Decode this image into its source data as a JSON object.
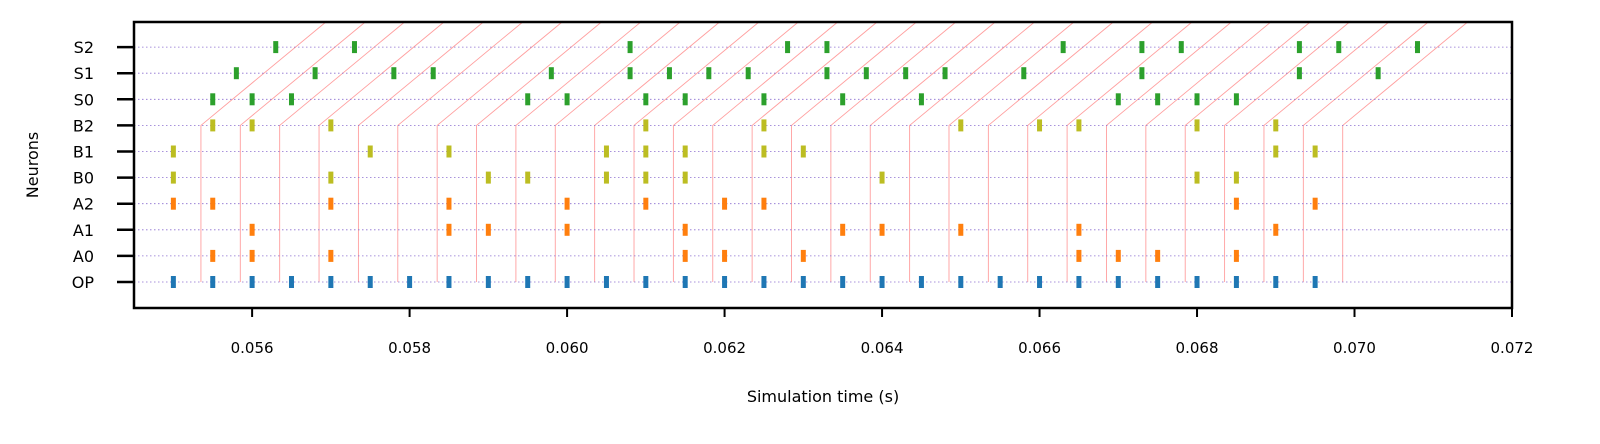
{
  "chart_data": {
    "type": "scatter",
    "title": "",
    "xlabel": "Simulation time (s)",
    "ylabel": "Neurons",
    "xlim": [
      0.0545,
      0.072
    ],
    "xticks": [
      "0.056",
      "0.058",
      "0.060",
      "0.062",
      "0.064",
      "0.066",
      "0.068",
      "0.070",
      "0.072"
    ],
    "xtick_values": [
      0.056,
      0.058,
      0.06,
      0.062,
      0.064,
      0.066,
      0.068,
      0.07,
      0.072
    ],
    "neurons": [
      "OP",
      "A0",
      "A1",
      "A2",
      "B0",
      "B1",
      "B2",
      "S0",
      "S1",
      "S2"
    ],
    "grid": "horizontal dotted per neuron",
    "legend": "none",
    "series": [
      {
        "neuron": "OP",
        "color": "#1f77b4",
        "x": [
          0.055,
          0.0555,
          0.056,
          0.0565,
          0.057,
          0.0575,
          0.058,
          0.0585,
          0.059,
          0.0595,
          0.06,
          0.0605,
          0.061,
          0.0615,
          0.062,
          0.0625,
          0.063,
          0.0635,
          0.064,
          0.0645,
          0.065,
          0.0655,
          0.066,
          0.0665,
          0.067,
          0.0675,
          0.068,
          0.0685,
          0.069,
          0.0695
        ]
      },
      {
        "neuron": "A0",
        "color": "#ff7f0e",
        "x": [
          0.0555,
          0.056,
          0.057,
          0.0615,
          0.062,
          0.063,
          0.0665,
          0.067,
          0.0675,
          0.0685
        ]
      },
      {
        "neuron": "A1",
        "color": "#ff7f0e",
        "x": [
          0.056,
          0.0585,
          0.059,
          0.06,
          0.0615,
          0.0635,
          0.064,
          0.065,
          0.0665,
          0.069
        ]
      },
      {
        "neuron": "A2",
        "color": "#ff7f0e",
        "x": [
          0.055,
          0.0555,
          0.057,
          0.0585,
          0.06,
          0.061,
          0.062,
          0.0625,
          0.0685,
          0.0695
        ]
      },
      {
        "neuron": "B0",
        "color": "#bcbd22",
        "x": [
          0.055,
          0.057,
          0.059,
          0.0595,
          0.0605,
          0.061,
          0.0615,
          0.064,
          0.068,
          0.0685
        ]
      },
      {
        "neuron": "B1",
        "color": "#bcbd22",
        "x": [
          0.055,
          0.0575,
          0.0585,
          0.0605,
          0.061,
          0.0615,
          0.0625,
          0.063,
          0.069,
          0.0695
        ]
      },
      {
        "neuron": "B2",
        "color": "#bcbd22",
        "x": [
          0.0555,
          0.056,
          0.057,
          0.061,
          0.0625,
          0.065,
          0.066,
          0.0665,
          0.068,
          0.069
        ]
      },
      {
        "neuron": "S0",
        "color": "#2ca02c",
        "x": [
          0.0555,
          0.056,
          0.0565,
          0.0595,
          0.06,
          0.061,
          0.0615,
          0.0625,
          0.0635,
          0.0645,
          0.067,
          0.0675,
          0.068,
          0.0685
        ]
      },
      {
        "neuron": "S1",
        "color": "#2ca02c",
        "x": [
          0.0558,
          0.0568,
          0.0578,
          0.0583,
          0.0598,
          0.0608,
          0.0613,
          0.0618,
          0.0623,
          0.0633,
          0.0638,
          0.0643,
          0.0648,
          0.0658,
          0.0673,
          0.0693,
          0.0703
        ]
      },
      {
        "neuron": "S2",
        "color": "#2ca02c",
        "x": [
          0.0563,
          0.0573,
          0.0608,
          0.0628,
          0.0633,
          0.0663,
          0.0673,
          0.0678,
          0.0693,
          0.0698,
          0.0708
        ]
      }
    ],
    "connection_color": "#ff9f9f",
    "connection_times": [
      0.05535,
      0.05585,
      0.05635,
      0.05685,
      0.05735,
      0.05785,
      0.05835,
      0.05885,
      0.05935,
      0.05985,
      0.06035,
      0.06085,
      0.06135,
      0.06185,
      0.06235,
      0.06285,
      0.06335,
      0.06385,
      0.06435,
      0.06485,
      0.06535,
      0.06585,
      0.06635,
      0.06685,
      0.06735,
      0.06785,
      0.06835,
      0.06885,
      0.06935,
      0.06985
    ],
    "connection_slant": 0.0016
  }
}
